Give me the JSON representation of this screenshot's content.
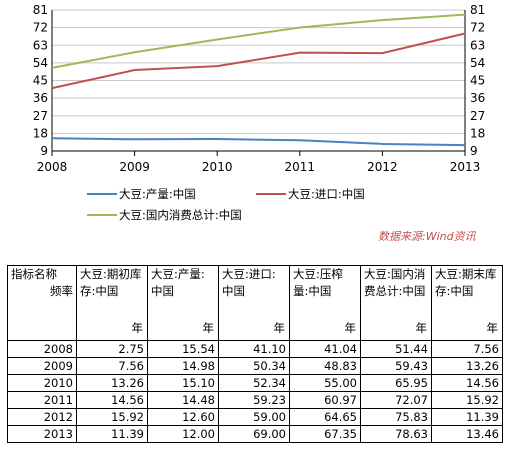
{
  "chart_data": {
    "type": "line",
    "x": [
      2008,
      2009,
      2010,
      2011,
      2012,
      2013
    ],
    "ylim": [
      9,
      81
    ],
    "yticks": [
      9,
      18,
      27,
      36,
      45,
      54,
      63,
      72,
      81
    ],
    "xlabel": "",
    "ylabel": "",
    "series": [
      {
        "name": "大豆:产量:中国",
        "color": "#4f81bd",
        "values": [
          15.54,
          14.98,
          15.1,
          14.48,
          12.6,
          12.0
        ]
      },
      {
        "name": "大豆:进口:中国",
        "color": "#c0504d",
        "values": [
          41.1,
          50.34,
          52.34,
          59.23,
          59.0,
          69.0
        ]
      },
      {
        "name": "大豆:国内消费总计:中国",
        "color": "#9bbb59",
        "values": [
          51.44,
          59.43,
          65.95,
          72.07,
          75.83,
          78.63
        ]
      }
    ],
    "source": "数据来源:Wind资讯"
  },
  "table": {
    "header": {
      "col0_name": "指标名称",
      "col0_freq": "频率",
      "columns": [
        {
          "name": "大豆:期初库存:中国",
          "unit": "年"
        },
        {
          "name": "大豆:产量:中国",
          "unit": "年"
        },
        {
          "name": "大豆:进口:中国",
          "unit": "年"
        },
        {
          "name": "大豆:压榨量:中国",
          "unit": "年"
        },
        {
          "name": "大豆:国内消费总计:中国",
          "unit": "年"
        },
        {
          "name": "大豆:期末库存:中国",
          "unit": "年"
        }
      ]
    },
    "rows": [
      {
        "year": "2008",
        "values": [
          "2.75",
          "15.54",
          "41.10",
          "41.04",
          "51.44",
          "7.56"
        ]
      },
      {
        "year": "2009",
        "values": [
          "7.56",
          "14.98",
          "50.34",
          "48.83",
          "59.43",
          "13.26"
        ]
      },
      {
        "year": "2010",
        "values": [
          "13.26",
          "15.10",
          "52.34",
          "55.00",
          "65.95",
          "14.56"
        ]
      },
      {
        "year": "2011",
        "values": [
          "14.56",
          "14.48",
          "59.23",
          "60.97",
          "72.07",
          "15.92"
        ]
      },
      {
        "year": "2012",
        "values": [
          "15.92",
          "12.60",
          "59.00",
          "64.65",
          "75.83",
          "11.39"
        ]
      },
      {
        "year": "2013",
        "values": [
          "11.39",
          "12.00",
          "69.00",
          "67.35",
          "78.63",
          "13.46"
        ]
      }
    ]
  }
}
